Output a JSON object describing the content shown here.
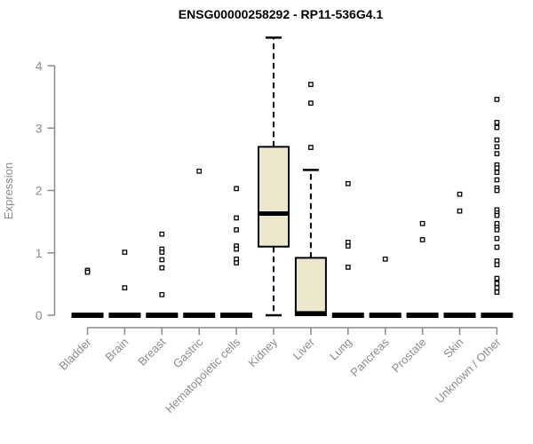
{
  "page": {
    "background": "#ffffff"
  },
  "chart_data": {
    "type": "boxplot",
    "title": "ENSG00000258292 - RP11-536G4.1",
    "ylabel": "Expression",
    "xlabel": "",
    "ylim": [
      0,
      4.5
    ],
    "yticks": [
      0,
      1,
      2,
      3,
      4
    ],
    "grid": false,
    "legend": false,
    "colors": {
      "box_fill": "#EDE8CD",
      "box_border": "#000000",
      "median": "#000000",
      "whisker": "#000000",
      "outlier_stroke": "#000000",
      "outlier_fill": "#ffffff",
      "axis": "#888888",
      "axis_text": "#8c8c8c",
      "title_text": "#000000"
    },
    "categories": [
      "Bladder",
      "Brain",
      "Breast",
      "Gastric",
      "Hematopoietic cells",
      "Kidney",
      "Liver",
      "Lung",
      "Pancreas",
      "Prostate",
      "Skin",
      "Unknown / Other"
    ],
    "boxes": [
      {
        "category": "Bladder",
        "q1": 0,
        "median": 0,
        "q3": 0,
        "whisker_low": 0,
        "whisker_high": 0,
        "outliers": [
          0.72,
          0.69
        ]
      },
      {
        "category": "Brain",
        "q1": 0,
        "median": 0,
        "q3": 0,
        "whisker_low": 0,
        "whisker_high": 0,
        "outliers": [
          1.01,
          0.44
        ]
      },
      {
        "category": "Breast",
        "q1": 0,
        "median": 0,
        "q3": 0,
        "whisker_low": 0,
        "whisker_high": 0,
        "outliers": [
          1.3,
          1.06,
          1.01,
          0.89,
          0.76,
          0.33
        ]
      },
      {
        "category": "Gastric",
        "q1": 0,
        "median": 0,
        "q3": 0,
        "whisker_low": 0,
        "whisker_high": 0,
        "outliers": [
          2.31
        ]
      },
      {
        "category": "Hematopoietic cells",
        "q1": 0,
        "median": 0,
        "q3": 0,
        "whisker_low": 0,
        "whisker_high": 0,
        "outliers": [
          2.03,
          1.56,
          1.37,
          1.11,
          1.06,
          0.9,
          0.84
        ]
      },
      {
        "category": "Kidney",
        "q1": 1.1,
        "median": 1.63,
        "q3": 2.7,
        "whisker_low": 0,
        "whisker_high": 4.45,
        "outliers": []
      },
      {
        "category": "Liver",
        "q1": 0,
        "median": 0.03,
        "q3": 0.92,
        "whisker_low": 0,
        "whisker_high": 2.33,
        "outliers": [
          3.7,
          3.4,
          2.69
        ]
      },
      {
        "category": "Lung",
        "q1": 0,
        "median": 0,
        "q3": 0,
        "whisker_low": 0,
        "whisker_high": 0,
        "outliers": [
          2.11,
          1.17,
          1.11,
          0.77
        ]
      },
      {
        "category": "Pancreas",
        "q1": 0,
        "median": 0,
        "q3": 0,
        "whisker_low": 0,
        "whisker_high": 0,
        "outliers": [
          0.9
        ]
      },
      {
        "category": "Prostate",
        "q1": 0,
        "median": 0,
        "q3": 0,
        "whisker_low": 0,
        "whisker_high": 0,
        "outliers": [
          1.47,
          1.21
        ]
      },
      {
        "category": "Skin",
        "q1": 0,
        "median": 0,
        "q3": 0,
        "whisker_low": 0,
        "whisker_high": 0,
        "outliers": [
          1.94,
          1.67
        ]
      },
      {
        "category": "Unknown / Other",
        "q1": 0,
        "median": 0,
        "q3": 0,
        "whisker_low": 0,
        "whisker_high": 0,
        "outliers": [
          3.46,
          3.09,
          3.01,
          2.81,
          2.7,
          2.59,
          2.41,
          2.36,
          2.29,
          2.17,
          2.04,
          2.0,
          1.69,
          1.64,
          1.6,
          1.47,
          1.41,
          1.37,
          1.23,
          1.09,
          0.87,
          0.81,
          0.59,
          0.51,
          0.44,
          0.37
        ]
      }
    ]
  }
}
